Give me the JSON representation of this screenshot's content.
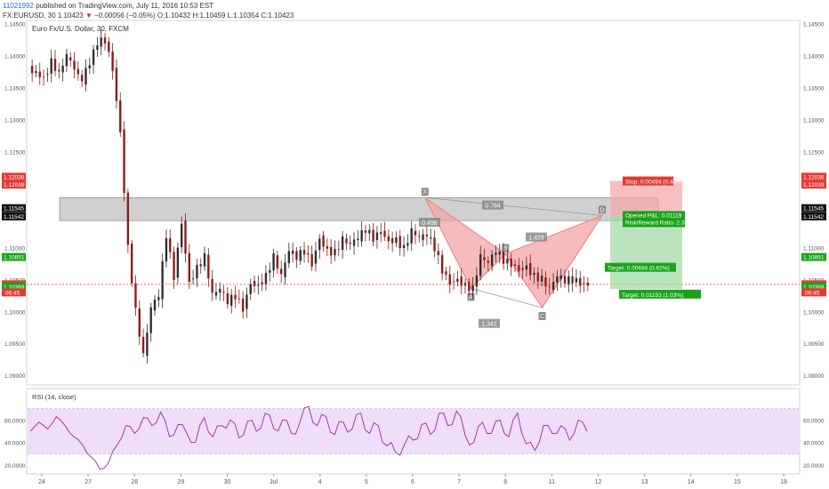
{
  "header": {
    "user": "11021992",
    "published": "published on TradingView.com, July 11, 2016 10:53 EST",
    "symbol": "FX:EURUSD, 30",
    "last": "1.10423",
    "change_arrow": "▼",
    "change": "−0.00056 (−0.05%)",
    "ohlc": "O:1.10432 H:1.10459 L:1.10354 C:1.10423"
  },
  "chart_title": "Euro Fx/U.S. Dollar, 30, FXCM",
  "rsi_title": "RSI (14, close)",
  "colors": {
    "up": "#2e2e2e",
    "down": "#8b1a1a",
    "pattern_fill": "#f3a5a5",
    "pattern_line": "#f08a8a",
    "zone": "#a9a9a9",
    "stop_fill": "#f4a9a9",
    "target_fill": "#9fd89f",
    "red": "#e53935",
    "green": "#1aa31a",
    "rsi_band": "#ead6f5",
    "rsi_line": "#9c27b0"
  },
  "chart_data": [
    {
      "type": "candlestick",
      "symbol": "FX:EURUSD",
      "timeframe": "30",
      "title": "Euro Fx/U.S. Dollar, 30, FXCM",
      "ylim": [
        1.0885,
        1.1455
      ],
      "y_ticks": [
        "1.14500",
        "1.14000",
        "1.13500",
        "1.13000",
        "1.12500",
        "1.12000",
        "1.11500",
        "1.11000",
        "1.10500",
        "1.10000",
        "1.09500",
        "1.09000"
      ],
      "x_ticks": [
        "24",
        "27",
        "28",
        "29",
        "30",
        "Jul",
        "4",
        "5",
        "6",
        "7",
        "8",
        "11",
        "12",
        "13",
        "14",
        "15",
        "18"
      ],
      "price_series": [
        [
          0,
          1.138
        ],
        [
          2,
          1.1365
        ],
        [
          3,
          1.139
        ],
        [
          4,
          1.1372
        ],
        [
          5,
          1.14
        ],
        [
          7,
          1.136
        ],
        [
          9,
          1.142
        ],
        [
          10,
          1.1425
        ],
        [
          11,
          1.138
        ],
        [
          12,
          1.128
        ],
        [
          13,
          1.11
        ],
        [
          14,
          1.1
        ],
        [
          15,
          1.093
        ],
        [
          16,
          1.1005
        ],
        [
          17,
          1.1025
        ],
        [
          18,
          1.112
        ],
        [
          19,
          1.1055
        ],
        [
          20,
          1.114
        ],
        [
          21,
          1.1045
        ],
        [
          22,
          1.1068
        ],
        [
          23,
          1.1085
        ],
        [
          24,
          1.1025
        ],
        [
          25,
          1.1035
        ],
        [
          26,
          1.1015
        ],
        [
          27,
          1.1025
        ],
        [
          28,
          1.1005
        ],
        [
          29,
          1.1045
        ],
        [
          30,
          1.104
        ],
        [
          31,
          1.1055
        ],
        [
          32,
          1.1085
        ],
        [
          33,
          1.1055
        ],
        [
          34,
          1.1095
        ],
        [
          35,
          1.1085
        ],
        [
          36,
          1.1095
        ],
        [
          37,
          1.1075
        ],
        [
          38,
          1.1115
        ],
        [
          39,
          1.1095
        ],
        [
          40,
          1.1092
        ],
        [
          41,
          1.1112
        ],
        [
          42,
          1.1105
        ],
        [
          43,
          1.1115
        ],
        [
          44,
          1.1128
        ],
        [
          45,
          1.1115
        ],
        [
          46,
          1.1125
        ],
        [
          47,
          1.111
        ],
        [
          48,
          1.1112
        ],
        [
          49,
          1.1098
        ],
        [
          50,
          1.1125
        ],
        [
          51,
          1.1115
        ],
        [
          52,
          1.112
        ],
        [
          53,
          1.11
        ],
        [
          54,
          1.1065
        ],
        [
          55,
          1.1045
        ],
        [
          56,
          1.105
        ],
        [
          57,
          1.104
        ],
        [
          58,
          1.1035
        ],
        [
          59,
          1.1085
        ],
        [
          60,
          1.1075
        ],
        [
          61,
          1.1095
        ],
        [
          62,
          1.108
        ],
        [
          63,
          1.1075
        ],
        [
          64,
          1.1065
        ],
        [
          65,
          1.107
        ],
        [
          66,
          1.1055
        ],
        [
          67,
          1.105
        ],
        [
          68,
          1.1035
        ],
        [
          69,
          1.1055
        ],
        [
          70,
          1.1048
        ],
        [
          71,
          1.105
        ],
        [
          72,
          1.1045
        ],
        [
          73,
          1.1042
        ]
      ],
      "labels": [
        "1.12036",
        "1.12039",
        "1.11545",
        "1.11542",
        "1.10851",
        "1.10423",
        "06:45",
        "1.10389"
      ],
      "pattern_points": [
        "X",
        "A",
        "B",
        "C",
        "D"
      ],
      "ratios": [
        "0.784",
        "0.498",
        "1.429",
        "1.341"
      ],
      "stop_label": "Stop: 0.00494 (0.44%)",
      "opened_pl": "Opened P&L: 0.01119",
      "rr_ratio": "Risk/Reward Ratio: 2.33",
      "target1": "Target: 0.00694 (0.62%)",
      "target2": "Target: 0.01153 (1.03%)"
    },
    {
      "type": "line",
      "title": "RSI (14, close)",
      "ylim": [
        12,
        88
      ],
      "y_ticks": [
        "60.0000",
        "40.0000",
        "20.0000"
      ],
      "band": [
        30,
        70
      ],
      "series": [
        [
          0,
          50
        ],
        [
          1,
          58
        ],
        [
          2,
          52
        ],
        [
          3,
          63
        ],
        [
          4,
          55
        ],
        [
          5,
          45
        ],
        [
          6,
          38
        ],
        [
          7,
          27
        ],
        [
          8,
          16
        ],
        [
          9,
          22
        ],
        [
          10,
          38
        ],
        [
          11,
          55
        ],
        [
          12,
          48
        ],
        [
          13,
          62
        ],
        [
          14,
          55
        ],
        [
          15,
          67
        ],
        [
          16,
          45
        ],
        [
          17,
          56
        ],
        [
          18,
          48
        ],
        [
          19,
          40
        ],
        [
          20,
          62
        ],
        [
          21,
          45
        ],
        [
          22,
          55
        ],
        [
          23,
          60
        ],
        [
          24,
          44
        ],
        [
          25,
          59
        ],
        [
          26,
          50
        ],
        [
          27,
          66
        ],
        [
          28,
          52
        ],
        [
          29,
          60
        ],
        [
          30,
          48
        ],
        [
          31,
          58
        ],
        [
          32,
          72
        ],
        [
          33,
          55
        ],
        [
          34,
          63
        ],
        [
          35,
          47
        ],
        [
          36,
          58
        ],
        [
          37,
          52
        ],
        [
          38,
          66
        ],
        [
          39,
          48
        ],
        [
          40,
          55
        ],
        [
          41,
          37
        ],
        [
          42,
          31
        ],
        [
          43,
          38
        ],
        [
          44,
          42
        ],
        [
          45,
          56
        ],
        [
          46,
          47
        ],
        [
          47,
          66
        ],
        [
          48,
          55
        ],
        [
          49,
          68
        ],
        [
          50,
          46
        ],
        [
          51,
          40
        ],
        [
          52,
          58
        ],
        [
          53,
          48
        ],
        [
          54,
          60
        ],
        [
          55,
          45
        ],
        [
          56,
          66
        ],
        [
          57,
          39
        ],
        [
          58,
          33
        ],
        [
          59,
          55
        ],
        [
          60,
          48
        ],
        [
          61,
          55
        ],
        [
          62,
          42
        ],
        [
          63,
          60
        ],
        [
          64,
          50
        ]
      ]
    }
  ]
}
